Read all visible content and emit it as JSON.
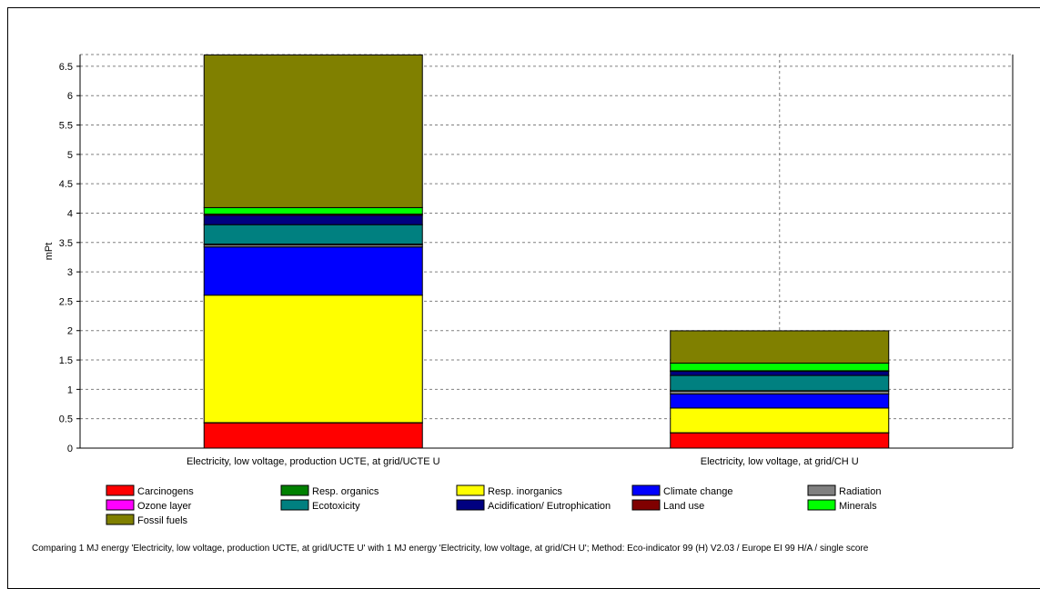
{
  "chart_data": {
    "type": "bar",
    "stacked": true,
    "ylabel": "mPt",
    "ylim": [
      0,
      6.7
    ],
    "yticks": [
      0,
      0.5,
      1,
      1.5,
      2,
      2.5,
      3,
      3.5,
      4,
      4.5,
      5,
      5.5,
      6,
      6.5
    ],
    "grid": true,
    "legend_position": "bottom",
    "categories": [
      "Electricity, low voltage, production UCTE, at grid/UCTE U",
      "Electricity, low voltage, at grid/CH U"
    ],
    "series": [
      {
        "name": "Carcinogens",
        "color": "#ff0000",
        "values": [
          0.43,
          0.26
        ]
      },
      {
        "name": "Resp. organics",
        "color": "#008000",
        "values": [
          0.004,
          0.002
        ]
      },
      {
        "name": "Resp. inorganics",
        "color": "#ffff00",
        "values": [
          2.17,
          0.42
        ]
      },
      {
        "name": "Climate change",
        "color": "#0000ff",
        "values": [
          0.82,
          0.24
        ]
      },
      {
        "name": "Radiation",
        "color": "#808080",
        "values": [
          0.04,
          0.05
        ]
      },
      {
        "name": "Ozone layer",
        "color": "#ff00ff",
        "values": [
          0.01,
          0.005
        ]
      },
      {
        "name": "Ecotoxicity",
        "color": "#008080",
        "values": [
          0.33,
          0.26
        ]
      },
      {
        "name": "Acidification/ Eutrophication",
        "color": "#000080",
        "values": [
          0.16,
          0.07
        ]
      },
      {
        "name": "Land use",
        "color": "#800000",
        "values": [
          0.02,
          0.01
        ]
      },
      {
        "name": "Minerals",
        "color": "#00ff00",
        "values": [
          0.11,
          0.13
        ]
      },
      {
        "name": "Fossil fuels",
        "color": "#808000",
        "values": [
          2.6,
          0.55
        ]
      }
    ],
    "caption": "Comparing 1 MJ energy 'Electricity, low voltage, production UCTE, at grid/UCTE U' with 1 MJ energy 'Electricity, low voltage, at grid/CH U';  Method: Eco-indicator 99 (H) V2.03 / Europe EI 99 H/A / single score"
  }
}
